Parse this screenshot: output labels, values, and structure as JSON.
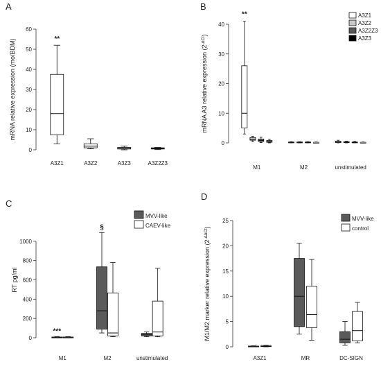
{
  "chart_data": [
    {
      "panel": "A",
      "type": "box",
      "ylabel": "mRNA relative expression (mo/BDM)",
      "ylim": [
        0,
        60
      ],
      "yticks": [
        0,
        10,
        20,
        30,
        40,
        50,
        60
      ],
      "categories": [
        "A3Z1",
        "A3Z2",
        "A3Z3",
        "A3Z2Z3"
      ],
      "series": [
        {
          "color": "#ffffff",
          "boxes": [
            {
              "min": 3,
              "q1": 7.5,
              "median": 18,
              "q3": 37.5,
              "max": 52,
              "annotation": "**"
            },
            {
              "min": 0.5,
              "q1": 1,
              "median": 1.8,
              "q3": 3,
              "max": 5.5
            },
            {
              "min": 0,
              "q1": 0.4,
              "median": 0.8,
              "q3": 1.2,
              "max": 1.8
            },
            {
              "min": 0.1,
              "q1": 0.4,
              "median": 0.7,
              "q3": 1,
              "max": 1.2
            }
          ]
        }
      ]
    },
    {
      "panel": "B",
      "type": "box",
      "ylabel": "mRNA A3 relative expression (2",
      "ylabel_sup": "-ΔCt",
      "ylabel_end": ")",
      "ylim": [
        0,
        40
      ],
      "yticks": [
        0,
        10,
        20,
        30,
        40
      ],
      "categories": [
        "M1",
        "M2",
        "unstimulated"
      ],
      "legend": {
        "position": "top-right",
        "entries": [
          "A3Z1",
          "A3Z2",
          "A3Z2Z3",
          "A3Z3"
        ]
      },
      "series": [
        {
          "name": "A3Z1",
          "color": "#ffffff",
          "boxes": [
            {
              "min": 3,
              "q1": 5,
              "median": 10,
              "q3": 26,
              "max": 41,
              "annotation": "**"
            },
            {
              "min": 0,
              "q1": 0.1,
              "median": 0.2,
              "q3": 0.3,
              "max": 0.4
            },
            {
              "min": 0,
              "q1": 0.1,
              "median": 0.3,
              "q3": 0.6,
              "max": 0.9
            }
          ]
        },
        {
          "name": "A3Z2",
          "color": "#c8c8c8",
          "boxes": [
            {
              "min": 0.4,
              "q1": 0.9,
              "median": 1.2,
              "q3": 1.8,
              "max": 2.2
            },
            {
              "min": 0,
              "q1": 0.1,
              "median": 0.2,
              "q3": 0.3,
              "max": 0.4
            },
            {
              "min": 0,
              "q1": 0.1,
              "median": 0.2,
              "q3": 0.4,
              "max": 0.6
            }
          ]
        },
        {
          "name": "A3Z2Z3",
          "color": "#5a5a5a",
          "boxes": [
            {
              "min": 0.1,
              "q1": 0.5,
              "median": 0.8,
              "q3": 1.3,
              "max": 1.9
            },
            {
              "min": 0,
              "q1": 0.1,
              "median": 0.2,
              "q3": 0.3,
              "max": 0.4
            },
            {
              "min": 0,
              "q1": 0.1,
              "median": 0.2,
              "q3": 0.3,
              "max": 0.5
            }
          ]
        },
        {
          "name": "A3Z3",
          "color": "#000000",
          "boxes": [
            {
              "min": 0,
              "q1": 0.2,
              "median": 0.4,
              "q3": 0.8,
              "max": 1.2
            },
            {
              "min": 0,
              "q1": 0.05,
              "median": 0.1,
              "q3": 0.2,
              "max": 0.3
            },
            {
              "min": 0,
              "q1": 0.05,
              "median": 0.1,
              "q3": 0.2,
              "max": 0.3
            }
          ]
        }
      ]
    },
    {
      "panel": "C",
      "type": "box",
      "ylabel": "RT pg/ml",
      "ylim": [
        0,
        1200
      ],
      "yticks": [
        0,
        200,
        400,
        600,
        800,
        1000
      ],
      "categories": [
        "M1",
        "M2",
        "unstimulated"
      ],
      "legend": {
        "position": "top-right",
        "entries": [
          "MVV-like",
          "CAEV-like"
        ]
      },
      "series": [
        {
          "name": "MVV-like",
          "color": "#5a5a5a",
          "boxes": [
            {
              "min": 0,
              "q1": 2,
              "median": 5,
              "q3": 8,
              "max": 12,
              "annotation": "***"
            },
            {
              "min": 50,
              "q1": 90,
              "median": 280,
              "q3": 735,
              "max": 1090,
              "annotation": "§"
            },
            {
              "min": 10,
              "q1": 20,
              "median": 35,
              "q3": 45,
              "max": 60
            }
          ]
        },
        {
          "name": "CAEV-like",
          "color": "#ffffff",
          "boxes": [
            {
              "min": 0,
              "q1": 2,
              "median": 5,
              "q3": 8,
              "max": 12
            },
            {
              "min": 10,
              "q1": 20,
              "median": 50,
              "q3": 465,
              "max": 780
            },
            {
              "min": 10,
              "q1": 20,
              "median": 60,
              "q3": 380,
              "max": 720
            }
          ]
        }
      ]
    },
    {
      "panel": "D",
      "type": "box",
      "ylabel": "M1/M2 marker relative expression (2",
      "ylabel_sup": "-ΔΔCt",
      "ylabel_end": ")",
      "ylim": [
        0,
        25
      ],
      "yticks": [
        0,
        5,
        10,
        15,
        20,
        25
      ],
      "categories": [
        "A3Z1",
        "MR",
        "DC-SIGN"
      ],
      "legend": {
        "position": "top-right",
        "entries": [
          "MVV-like",
          "control"
        ]
      },
      "series": [
        {
          "name": "MVV-like",
          "color": "#5a5a5a",
          "boxes": [
            {
              "min": 0,
              "q1": 0.05,
              "median": 0.1,
              "q3": 0.15,
              "max": 0.2
            },
            {
              "min": 2.5,
              "q1": 4,
              "median": 10,
              "q3": 17.5,
              "max": 20.5
            },
            {
              "min": 0.3,
              "q1": 0.8,
              "median": 1.5,
              "q3": 3,
              "max": 5
            }
          ]
        },
        {
          "name": "control",
          "color": "#ffffff",
          "boxes": [
            {
              "min": 0,
              "q1": 0.05,
              "median": 0.1,
              "q3": 0.2,
              "max": 0.3
            },
            {
              "min": 1.3,
              "q1": 3.8,
              "median": 6.4,
              "q3": 12,
              "max": 17.3
            },
            {
              "min": 0.8,
              "q1": 1.2,
              "median": 3.2,
              "q3": 7,
              "max": 8.8
            }
          ]
        }
      ]
    }
  ]
}
